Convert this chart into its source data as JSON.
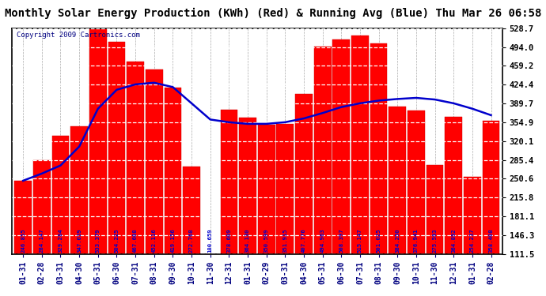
{
  "title": "Monthly Solar Energy Production (KWh) (Red) & Running Avg (Blue) Thu Mar 26 06:58",
  "copyright": "Copyright 2009 Cartronics.com",
  "bar_color": "#ff0000",
  "line_color": "#0000cc",
  "background_color": "#ffffff",
  "grid_color_h": "#ffffff",
  "grid_color_v": "#aaaaaa",
  "labels": [
    "01-31",
    "02-28",
    "03-31",
    "04-30",
    "05-31",
    "06-30",
    "07-31",
    "08-31",
    "09-30",
    "10-31",
    "11-30",
    "12-31",
    "01-31",
    "02-29",
    "03-31",
    "04-30",
    "05-31",
    "06-30",
    "07-31",
    "08-31",
    "09-30",
    "10-31",
    "11-30",
    "12-31",
    "01-31",
    "02-28"
  ],
  "bar_values": [
    246.855,
    284.147,
    329.284,
    347.039,
    533.379,
    504.225,
    467.608,
    452.116,
    419.156,
    272.768,
    100.659,
    378.609,
    364.13,
    350.599,
    351.915,
    407.776,
    494.963,
    508.397,
    515.147,
    501.025,
    384.25,
    376.941,
    275.593,
    364.892,
    254.237,
    358.408
  ],
  "running_avg": [
    246.855,
    260.0,
    275.0,
    310.0,
    380.0,
    415.0,
    425.0,
    428.0,
    420.0,
    390.0,
    360.0,
    355.0,
    352.0,
    352.0,
    355.0,
    362.0,
    372.0,
    383.0,
    390.0,
    395.0,
    398.0,
    400.0,
    397.0,
    390.0,
    380.0,
    368.0
  ],
  "yticks": [
    111.5,
    146.3,
    181.1,
    215.8,
    250.6,
    285.4,
    320.1,
    354.9,
    389.7,
    424.4,
    459.2,
    494.0,
    528.7
  ],
  "ylim": [
    111.5,
    528.7
  ],
  "title_fontsize": 10,
  "label_fontsize": 7,
  "tick_fontsize": 7.5,
  "value_fontsize": 5.2,
  "copyright_fontsize": 6.5
}
